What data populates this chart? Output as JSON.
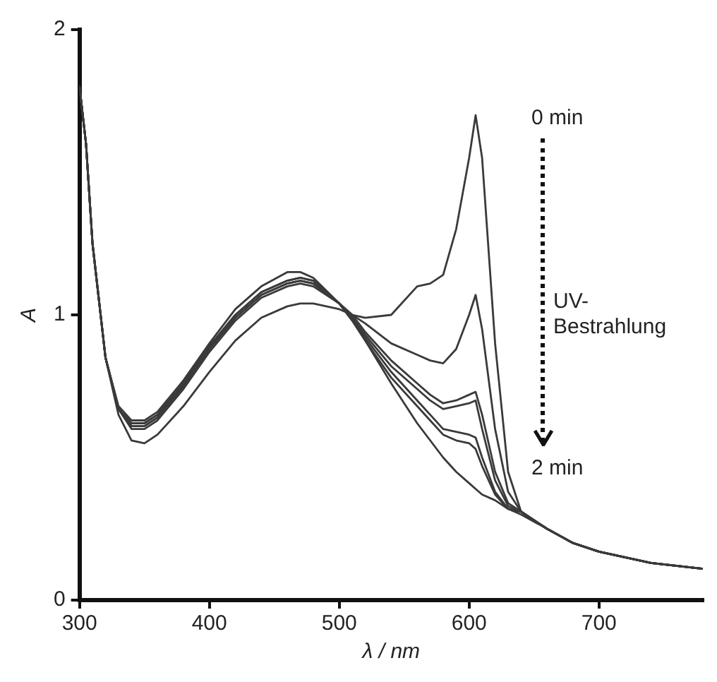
{
  "chart_data": {
    "type": "line",
    "xlabel": "λ / nm",
    "ylabel": "A",
    "x": [
      300,
      305,
      310,
      320,
      330,
      340,
      350,
      360,
      380,
      400,
      420,
      440,
      460,
      470,
      480,
      500,
      510,
      520,
      540,
      560,
      570,
      580,
      590,
      600,
      605,
      610,
      620,
      630,
      640,
      660,
      680,
      700,
      740,
      780
    ],
    "series": [
      {
        "color": "#3a3a3a",
        "values": [
          1.8,
          1.6,
          1.25,
          0.85,
          0.65,
          0.56,
          0.55,
          0.58,
          0.68,
          0.8,
          0.91,
          0.99,
          1.03,
          1.04,
          1.04,
          1.02,
          1.0,
          0.99,
          1.0,
          1.1,
          1.11,
          1.14,
          1.3,
          1.55,
          1.7,
          1.55,
          0.9,
          0.45,
          0.31,
          0.25,
          0.2,
          0.17,
          0.13,
          0.11
        ]
      },
      {
        "color": "#3a3a3a",
        "values": [
          1.8,
          1.6,
          1.25,
          0.85,
          0.67,
          0.6,
          0.6,
          0.63,
          0.74,
          0.87,
          0.98,
          1.06,
          1.1,
          1.11,
          1.1,
          1.04,
          1.0,
          0.97,
          0.9,
          0.86,
          0.84,
          0.83,
          0.88,
          1.0,
          1.07,
          0.95,
          0.6,
          0.38,
          0.31,
          0.25,
          0.2,
          0.17,
          0.13,
          0.11
        ]
      },
      {
        "color": "#3a3a3a",
        "values": [
          1.8,
          1.6,
          1.25,
          0.85,
          0.67,
          0.61,
          0.61,
          0.64,
          0.75,
          0.88,
          0.99,
          1.07,
          1.11,
          1.12,
          1.11,
          1.04,
          1.0,
          0.94,
          0.84,
          0.76,
          0.72,
          0.69,
          0.7,
          0.72,
          0.73,
          0.65,
          0.45,
          0.34,
          0.31,
          0.25,
          0.2,
          0.17,
          0.13,
          0.11
        ]
      },
      {
        "color": "#3a3a3a",
        "values": [
          1.8,
          1.6,
          1.25,
          0.85,
          0.67,
          0.61,
          0.61,
          0.64,
          0.75,
          0.88,
          0.99,
          1.07,
          1.11,
          1.12,
          1.11,
          1.04,
          0.99,
          0.93,
          0.82,
          0.74,
          0.7,
          0.67,
          0.68,
          0.69,
          0.7,
          0.6,
          0.42,
          0.33,
          0.31,
          0.25,
          0.2,
          0.17,
          0.13,
          0.11
        ]
      },
      {
        "color": "#3a3a3a",
        "values": [
          1.8,
          1.6,
          1.25,
          0.85,
          0.67,
          0.62,
          0.62,
          0.65,
          0.76,
          0.89,
          1.0,
          1.08,
          1.12,
          1.13,
          1.12,
          1.04,
          0.99,
          0.92,
          0.8,
          0.7,
          0.65,
          0.6,
          0.59,
          0.58,
          0.57,
          0.5,
          0.38,
          0.32,
          0.31,
          0.25,
          0.2,
          0.17,
          0.13,
          0.11
        ]
      },
      {
        "color": "#3a3a3a",
        "values": [
          1.8,
          1.6,
          1.25,
          0.85,
          0.67,
          0.62,
          0.62,
          0.65,
          0.76,
          0.89,
          1.0,
          1.08,
          1.12,
          1.13,
          1.12,
          1.04,
          0.98,
          0.91,
          0.78,
          0.68,
          0.63,
          0.58,
          0.56,
          0.55,
          0.53,
          0.47,
          0.37,
          0.32,
          0.31,
          0.25,
          0.2,
          0.17,
          0.13,
          0.11
        ]
      },
      {
        "color": "#3a3a3a",
        "values": [
          1.8,
          1.6,
          1.25,
          0.85,
          0.68,
          0.63,
          0.63,
          0.66,
          0.77,
          0.9,
          1.02,
          1.1,
          1.15,
          1.15,
          1.13,
          1.04,
          0.98,
          0.91,
          0.76,
          0.62,
          0.56,
          0.5,
          0.45,
          0.41,
          0.39,
          0.37,
          0.35,
          0.32,
          0.3,
          0.25,
          0.2,
          0.17,
          0.13,
          0.11
        ]
      }
    ],
    "xlim": [
      300,
      780
    ],
    "ylim": [
      0,
      2
    ],
    "xticks": [
      300,
      400,
      500,
      600,
      700
    ],
    "yticks": [
      0,
      1,
      2
    ],
    "grid": false,
    "legend": false,
    "marker": "none",
    "line_style": "solid",
    "annotations": [
      "0 min",
      "UV-Bestrahlung",
      "2 min"
    ]
  }
}
